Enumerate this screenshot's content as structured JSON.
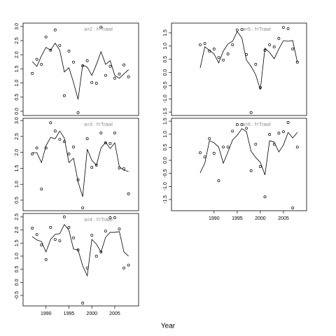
{
  "xlabel": "Year",
  "chart_data": [
    {
      "type": "line",
      "title": "a=2  :  f=Trawl",
      "x": [
        1987,
        1988,
        1989,
        1990,
        1991,
        1992,
        1993,
        1994,
        1995,
        1996,
        1997,
        1998,
        1999,
        2000,
        2001,
        2002,
        2003,
        2004,
        2005,
        2006,
        2007,
        2008
      ],
      "xlim": [
        1985,
        2010.2
      ],
      "ylim": [
        -0.15,
        3.12
      ],
      "yticks": [
        {
          "value": 0,
          "label": "0.0"
        },
        0.5,
        {
          "value": 1,
          "label": "1.0"
        },
        1.5,
        {
          "value": 2,
          "label": "2.0"
        },
        2.5,
        {
          "value": 3,
          "label": "3.0"
        }
      ],
      "series": [
        {
          "style": "line",
          "color": "#000000",
          "values": [
            1.76,
            1.59,
            1.96,
            2.26,
            2.16,
            2.41,
            2.16,
            1.39,
            1.54,
            1.02,
            0.42,
            1.64,
            1.56,
            1.27,
            1.66,
            2.11,
            1.66,
            1.79,
            1.27,
            1.17,
            1.32,
            1.47
          ]
        },
        {
          "style": "points",
          "color": "#000000",
          "values": [
            1.34,
            1.84,
            1.66,
            2.63,
            2.16,
            2.88,
            2.33,
            0.55,
            2.13,
            1.74,
            -0.05,
            1.61,
            1.79,
            1.02,
            0.99,
            2.98,
            1.27,
            1.59,
            1.17,
            1.32,
            1.64,
            1.22
          ]
        }
      ]
    },
    {
      "type": "line",
      "title": "a=3  :  f=Trawl",
      "x": [
        1987,
        1988,
        1989,
        1990,
        1991,
        1992,
        1993,
        1994,
        1995,
        1996,
        1997,
        1998,
        1999,
        2000,
        2001,
        2002,
        2003,
        2004,
        2005,
        2006,
        2007,
        2008
      ],
      "xlim": [
        1985,
        2010.2
      ],
      "ylim": [
        0.17,
        3.07
      ],
      "yticks": [
        0.5,
        {
          "value": 1,
          "label": "1.0"
        },
        1.5,
        {
          "value": 2,
          "label": "2.0"
        },
        2.5,
        {
          "value": 3,
          "label": "3.0"
        }
      ],
      "series": [
        {
          "style": "line",
          "color": "#000000",
          "values": [
            1.99,
            1.99,
            1.68,
            2.21,
            2.47,
            2.43,
            2.67,
            2.45,
            1.68,
            1.82,
            1.07,
            0.61,
            2.1,
            1.75,
            1.6,
            2.14,
            2.32,
            2.12,
            2.3,
            1.55,
            1.44,
            1.4
          ]
        },
        {
          "style": "points",
          "color": "#000000",
          "values": [
            1.95,
            2.14,
            0.85,
            2.14,
            2.93,
            2.67,
            2.41,
            2.34,
            1.95,
            2.17,
            1.14,
            0.26,
            2.43,
            1.53,
            1.6,
            2.61,
            2.3,
            2.28,
            2.61,
            1.51,
            1.49,
            0.7
          ]
        }
      ]
    },
    {
      "type": "line",
      "title": "a=4  :  f=Trawl",
      "x": [
        1987,
        1988,
        1989,
        1990,
        1991,
        1992,
        1993,
        1994,
        1995,
        1996,
        1997,
        1998,
        1999,
        2000,
        2001,
        2002,
        2003,
        2004,
        2005,
        2006,
        2007,
        2008
      ],
      "xlim": [
        1985,
        2010.2
      ],
      "ylim": [
        -0.9,
        2.63
      ],
      "xticks": [
        1990,
        1995,
        2000,
        2005
      ],
      "yticks": [
        -0.5,
        {
          "value": 0,
          "label": "0.0"
        },
        0.5,
        {
          "value": 1,
          "label": "1.0"
        },
        1.5,
        {
          "value": 2,
          "label": "2.0"
        },
        2.5
      ],
      "series": [
        {
          "style": "line",
          "color": "#000000",
          "values": [
            1.75,
            1.62,
            1.56,
            1.16,
            1.64,
            1.83,
            1.86,
            2.21,
            1.99,
            1.27,
            1.24,
            0.63,
            0.25,
            1.64,
            1.46,
            1.16,
            1.72,
            1.91,
            1.91,
            1.94,
            1.16,
            1.0
          ]
        },
        {
          "style": "points",
          "color": "#000000",
          "values": [
            2.07,
            1.83,
            1.43,
            0.87,
            2.1,
            1.64,
            1.59,
            2.5,
            2.1,
            1.7,
            1.24,
            -0.79,
            0.55,
            1.8,
            1.0,
            1.16,
            1.96,
            2.47,
            2.47,
            2.04,
            0.55,
            0.66
          ]
        }
      ]
    },
    {
      "type": "line",
      "title": "a=5  :  f=Trawl",
      "x": [
        1987,
        1988,
        1989,
        1990,
        1991,
        1992,
        1993,
        1994,
        1995,
        1996,
        1997,
        1998,
        1999,
        2000,
        2001,
        2002,
        2003,
        2004,
        2005,
        2006,
        2007,
        2008
      ],
      "xlim": [
        1980.8,
        2010
      ],
      "ylim": [
        -1.63,
        1.87
      ],
      "yticks": [
        -1.5,
        {
          "value": -1,
          "label": "-1.0"
        },
        -0.5,
        {
          "value": 0,
          "label": "0.0"
        },
        0.5,
        {
          "value": 1,
          "label": "1.0"
        },
        1.5
      ],
      "series": [
        {
          "style": "line",
          "color": "#000000",
          "values": [
            0.17,
            0.97,
            0.84,
            0.7,
            0.36,
            0.81,
            1.08,
            1.18,
            1.55,
            1.31,
            0.47,
            0.23,
            -0.09,
            -0.65,
            0.92,
            0.76,
            0.52,
            0.89,
            1.21,
            1.18,
            1.21,
            0.39
          ]
        },
        {
          "style": "points",
          "color": "#000000",
          "values": [
            1.05,
            1.1,
            0.81,
            0.89,
            0.57,
            0.47,
            0.7,
            1.05,
            1.61,
            1.63,
            0.68,
            -1.52,
            0.31,
            -0.57,
            0.84,
            1.05,
            0.97,
            1.29,
            1.71,
            1.66,
            0.89,
            0.39
          ]
        }
      ]
    },
    {
      "type": "line",
      "title": "a=6  :  f=Trawl",
      "x": [
        1987,
        1988,
        1989,
        1990,
        1991,
        1992,
        1993,
        1994,
        1995,
        1996,
        1997,
        1998,
        1999,
        2000,
        2001,
        2002,
        2003,
        2004,
        2005,
        2006,
        2007,
        2008
      ],
      "xlim": [
        1980.8,
        2010
      ],
      "ylim": [
        -1.93,
        1.61
      ],
      "xticks": [
        1990,
        1995,
        2000,
        2005
      ],
      "yticks": [
        -1.5,
        {
          "value": -1,
          "label": "-1.0"
        },
        -0.5,
        {
          "value": 0,
          "label": "0.0"
        },
        0.5,
        {
          "value": 1,
          "label": "1.0"
        },
        1.5
      ],
      "series": [
        {
          "style": "line",
          "color": "#000000",
          "values": [
            -0.48,
            -0.11,
            0.75,
            0.67,
            0.51,
            -0.11,
            0.32,
            0.78,
            0.96,
            1.21,
            1.1,
            0.35,
            0.11,
            -0.08,
            -0.56,
            0.75,
            0.7,
            0.32,
            0.59,
            1.07,
            0.86,
            1.07
          ]
        },
        {
          "style": "points",
          "color": "#000000",
          "values": [
            0.29,
            0.13,
            0.83,
            0.27,
            -0.78,
            0.51,
            0.51,
            1.12,
            1.37,
            1.37,
            1.23,
            -0.4,
            0.62,
            -0.24,
            -1.4,
            0.99,
            0.62,
            1.04,
            1.1,
            1.45,
            -1.82,
            0.51
          ]
        }
      ]
    }
  ]
}
